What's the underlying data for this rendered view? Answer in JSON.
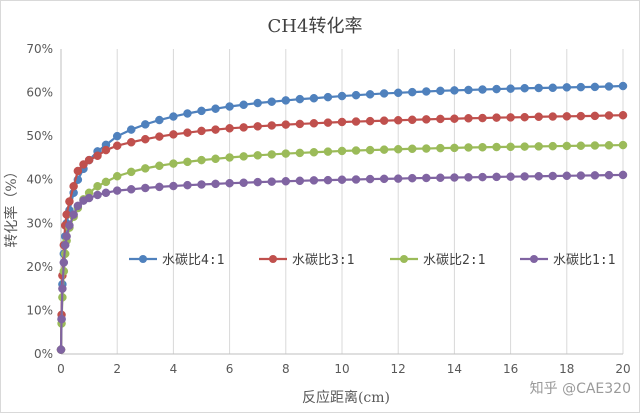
{
  "chart_data": {
    "type": "line",
    "title": "CH4转化率",
    "xlabel": "反应距离(cm)",
    "ylabel": "转化率（%）",
    "xlim": [
      0,
      20
    ],
    "ylim": [
      0,
      70
    ],
    "x_ticks": [
      "0",
      "2",
      "4",
      "6",
      "8",
      "10",
      "12",
      "14",
      "16",
      "18",
      "20"
    ],
    "y_ticks": [
      "0%",
      "10%",
      "20%",
      "30%",
      "40%",
      "50%",
      "60%",
      "70%"
    ],
    "grid": "vertical",
    "legend_placement": "center-right",
    "x": [
      0,
      0.02,
      0.05,
      0.1,
      0.15,
      0.2,
      0.3,
      0.45,
      0.6,
      0.8,
      1.0,
      1.3,
      1.6,
      2.0,
      2.5,
      3.0,
      3.5,
      4.0,
      4.5,
      5.0,
      5.5,
      6.0,
      6.5,
      7.0,
      7.5,
      8.0,
      8.5,
      9.0,
      9.5,
      10.0,
      10.5,
      11.0,
      11.5,
      12.0,
      12.5,
      13.0,
      13.5,
      14.0,
      14.5,
      15.0,
      15.5,
      16.0,
      16.5,
      17.0,
      17.5,
      18.0,
      18.5,
      19.0,
      19.5,
      20.0
    ],
    "series": [
      {
        "name": "水碳比4:1",
        "color": "#4f81bd",
        "values": [
          1,
          8,
          16,
          23,
          27,
          30,
          33,
          37,
          40,
          42.5,
          44.5,
          46.5,
          48,
          50,
          51.5,
          52.7,
          53.7,
          54.5,
          55.2,
          55.8,
          56.3,
          56.8,
          57.2,
          57.6,
          57.9,
          58.2,
          58.5,
          58.7,
          58.95,
          59.2,
          59.4,
          59.6,
          59.8,
          59.95,
          60.1,
          60.25,
          60.4,
          60.5,
          60.6,
          60.7,
          60.8,
          60.9,
          61.0,
          61.05,
          61.1,
          61.2,
          61.25,
          61.3,
          61.4,
          61.5
        ]
      },
      {
        "name": "水碳比3:1",
        "color": "#c0504d",
        "values": [
          1,
          9,
          18,
          25,
          29.5,
          32,
          35,
          38.5,
          42,
          43.5,
          44.5,
          45.5,
          46.8,
          47.8,
          48.6,
          49.3,
          49.9,
          50.4,
          50.8,
          51.2,
          51.5,
          51.8,
          52.0,
          52.25,
          52.45,
          52.65,
          52.8,
          52.95,
          53.1,
          53.25,
          53.35,
          53.45,
          53.55,
          53.65,
          53.75,
          53.85,
          53.95,
          54.0,
          54.1,
          54.15,
          54.25,
          54.3,
          54.35,
          54.45,
          54.5,
          54.55,
          54.6,
          54.65,
          54.75,
          54.8
        ]
      },
      {
        "name": "水碳比2:1",
        "color": "#9bbb59",
        "values": [
          1,
          7,
          13,
          19,
          23,
          26,
          29,
          31.5,
          33.5,
          35.5,
          37,
          38.5,
          39.5,
          40.8,
          41.8,
          42.6,
          43.2,
          43.7,
          44.1,
          44.5,
          44.8,
          45.1,
          45.35,
          45.6,
          45.8,
          46.0,
          46.15,
          46.3,
          46.45,
          46.6,
          46.7,
          46.8,
          46.9,
          47.0,
          47.1,
          47.15,
          47.25,
          47.3,
          47.4,
          47.45,
          47.5,
          47.55,
          47.6,
          47.65,
          47.7,
          47.75,
          47.8,
          47.85,
          47.9,
          47.95
        ]
      },
      {
        "name": "水碳比1:1",
        "color": "#8064a2",
        "values": [
          1,
          8,
          15,
          21,
          25,
          27,
          29.5,
          32,
          34,
          35.2,
          35.8,
          36.5,
          37,
          37.5,
          37.8,
          38.1,
          38.35,
          38.55,
          38.75,
          38.9,
          39.05,
          39.2,
          39.3,
          39.45,
          39.55,
          39.65,
          39.75,
          39.85,
          39.9,
          40.0,
          40.05,
          40.15,
          40.2,
          40.25,
          40.35,
          40.4,
          40.45,
          40.5,
          40.55,
          40.6,
          40.65,
          40.7,
          40.75,
          40.8,
          40.85,
          40.9,
          40.95,
          41.0,
          41.05,
          41.1
        ]
      }
    ]
  },
  "watermark": "知乎 @CAE320"
}
